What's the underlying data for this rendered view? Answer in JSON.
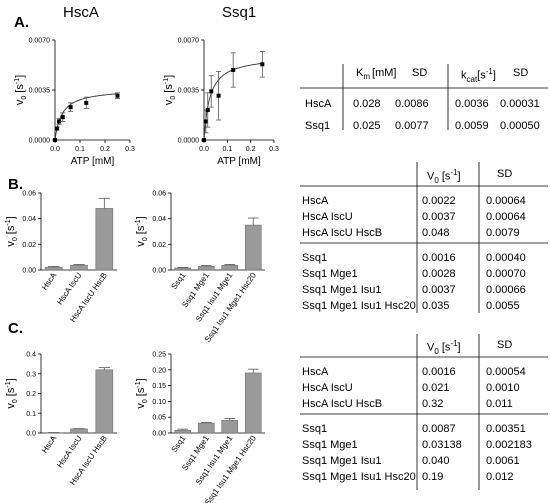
{
  "panels": {
    "A": {
      "label": "A.",
      "hsca_title": "HscA",
      "ssq1_title": "Ssq1",
      "table": {
        "headers": [
          "",
          "K",
          "[mM]",
          "SD",
          "k",
          "[s",
          "-1",
          "]",
          "SD"
        ],
        "km_sub": "m",
        "kcat_sub": "cat",
        "rows": [
          {
            "name": "HscA",
            "km": "0.028",
            "km_sd": "0.0086",
            "kcat": "0.0036",
            "kcat_sd": "0.00031"
          },
          {
            "name": "Ssq1",
            "km": "0.025",
            "km_sd": "0.0077",
            "kcat": "0.0059",
            "kcat_sd": "0.00050"
          }
        ]
      }
    },
    "B": {
      "label": "B.",
      "table": {
        "v0_head": "V",
        "v0_sub": "0",
        "v0_unit": " [s",
        "v0_sup": "-1",
        "v0_close": "]",
        "sd_head": "SD",
        "group1": [
          {
            "name": "HscA",
            "v0": "0.0022",
            "sd": "0.00064"
          },
          {
            "name": "HscA IscU",
            "v0": "0.0037",
            "sd": "0.00064"
          },
          {
            "name": "HscA IscU HscB",
            "v0": "0.048",
            "sd": "0.0079"
          }
        ],
        "group2": [
          {
            "name": "Ssq1",
            "v0": "0.0016",
            "sd": "0.00040"
          },
          {
            "name": "Ssq1 Mge1",
            "v0": "0.0028",
            "sd": "0.00070"
          },
          {
            "name": "Ssq1 Mge1 Isu1",
            "v0": "0.0037",
            "sd": "0.00066"
          },
          {
            "name": "Ssq1 Mge1 Isu1 Hsc20",
            "v0": "0.035",
            "sd": "0.0055"
          }
        ]
      }
    },
    "C": {
      "label": "C.",
      "table": {
        "v0_head": "V",
        "v0_sub": "0",
        "v0_unit": " [s",
        "v0_sup": "-1",
        "v0_close": "]",
        "sd_head": "SD",
        "group1": [
          {
            "name": "HscA",
            "v0": "0.0016",
            "sd": "0.00054"
          },
          {
            "name": "HscA IscU",
            "v0": "0.021",
            "sd": "0.0010"
          },
          {
            "name": "HscA IscU HscB",
            "v0": "0.32",
            "sd": "0.011"
          }
        ],
        "group2": [
          {
            "name": "Ssq1",
            "v0": "0.0087",
            "sd": "0.00351"
          },
          {
            "name": "Ssq1 Mge1",
            "v0": "0.03138",
            "sd": "0.002183"
          },
          {
            "name": "Ssq1 Mge1 Isu1",
            "v0": "0.040",
            "sd": "0.0061"
          },
          {
            "name": "Ssq1 Mge1 Isu1 Hsc20",
            "v0": "0.19",
            "sd": "0.012"
          }
        ]
      }
    }
  },
  "chart_data": [
    {
      "id": "A-HscA",
      "type": "scatter",
      "xlabel": "ATP [mM]",
      "ylabel": "v0 [s-1]",
      "ylabel_main": "v",
      "ylabel_sub": "0",
      "ylabel_unit": " [s",
      "ylabel_sup": "-1",
      "ylabel_close": "]",
      "xlim": [
        0,
        0.3
      ],
      "ylim": [
        0,
        0.007
      ],
      "xticks": [
        "0.0",
        "0.1",
        "0.2",
        "0.3"
      ],
      "yticks": [
        "0.0000",
        "0.0035",
        "0.0070"
      ],
      "points": [
        {
          "x": 0.0,
          "y": 0.0,
          "err": 0.0
        },
        {
          "x": 0.008,
          "y": 0.0008,
          "err": 0.0001
        },
        {
          "x": 0.016,
          "y": 0.0013,
          "err": 0.0002
        },
        {
          "x": 0.031,
          "y": 0.0016,
          "err": 0.0003
        },
        {
          "x": 0.0625,
          "y": 0.0023,
          "err": 0.0003
        },
        {
          "x": 0.125,
          "y": 0.0026,
          "err": 0.0004
        },
        {
          "x": 0.25,
          "y": 0.0031,
          "err": 0.0002
        }
      ],
      "fit": {
        "vmax": 0.0036,
        "km": 0.028
      }
    },
    {
      "id": "A-Ssq1",
      "type": "scatter",
      "xlabel": "ATP [mM]",
      "ylabel": "v0 [s-1]",
      "ylabel_main": "v",
      "ylabel_sub": "0",
      "ylabel_unit": " [s",
      "ylabel_sup": "-1",
      "ylabel_close": "]",
      "xlim": [
        0,
        0.3
      ],
      "ylim": [
        0,
        0.007
      ],
      "xticks": [
        "0.0",
        "0.1",
        "0.2",
        "0.3"
      ],
      "yticks": [
        "0.0000",
        "0.0035",
        "0.0070"
      ],
      "points": [
        {
          "x": 0.0,
          "y": 0.0,
          "err": 0.0
        },
        {
          "x": 0.008,
          "y": 0.0013,
          "err": 0.0008
        },
        {
          "x": 0.016,
          "y": 0.0021,
          "err": 0.0012
        },
        {
          "x": 0.031,
          "y": 0.0034,
          "err": 0.0011
        },
        {
          "x": 0.0625,
          "y": 0.0031,
          "err": 0.0017
        },
        {
          "x": 0.125,
          "y": 0.0049,
          "err": 0.0012
        },
        {
          "x": 0.25,
          "y": 0.0053,
          "err": 0.0009
        }
      ],
      "fit": {
        "vmax": 0.0059,
        "km": 0.025
      }
    },
    {
      "id": "B-HscA",
      "type": "bar",
      "ylabel": "v0 [s-1]",
      "ylabel_main": "v",
      "ylabel_sub": "0",
      "ylabel_unit": " [s",
      "ylabel_sup": "-1",
      "ylabel_close": "]",
      "ylim": [
        0,
        0.06
      ],
      "yticks": [
        "0.00",
        "0.02",
        "0.04",
        "0.06"
      ],
      "categories": [
        "HscA",
        "HscA IscU",
        "HscA IscU HscB"
      ],
      "values": [
        0.0022,
        0.0037,
        0.048
      ],
      "errors": [
        0.00064,
        0.00064,
        0.0079
      ]
    },
    {
      "id": "B-Ssq1",
      "type": "bar",
      "ylabel": "v0 [s-1]",
      "ylabel_main": "v",
      "ylabel_sub": "0",
      "ylabel_unit": " [s",
      "ylabel_sup": "-1",
      "ylabel_close": "]",
      "ylim": [
        0,
        0.06
      ],
      "yticks": [
        "0.00",
        "0.02",
        "0.04",
        "0.06"
      ],
      "categories": [
        "Ssq1",
        "Ssq1 Mge1",
        "Ssq1 Isu1 Mge1",
        "Ssq1 Isu1 Mge1 Hsc20"
      ],
      "values": [
        0.0016,
        0.0028,
        0.0037,
        0.035
      ],
      "errors": [
        0.0004,
        0.0007,
        0.00066,
        0.0055
      ]
    },
    {
      "id": "C-HscA",
      "type": "bar",
      "ylabel": "v0 [s-1]",
      "ylabel_main": "v",
      "ylabel_sub": "0",
      "ylabel_unit": " [s",
      "ylabel_sup": "-1",
      "ylabel_close": "]",
      "ylim": [
        0,
        0.4
      ],
      "yticks": [
        "0.0",
        "0.1",
        "0.2",
        "0.3",
        "0.4"
      ],
      "categories": [
        "HscA",
        "HscA IscU",
        "HscA IscU HscB"
      ],
      "values": [
        0.0016,
        0.021,
        0.32
      ],
      "errors": [
        0.00054,
        0.001,
        0.011
      ]
    },
    {
      "id": "C-Ssq1",
      "type": "bar",
      "ylabel": "v0 [s-1]",
      "ylabel_main": "v",
      "ylabel_sub": "0",
      "ylabel_unit": " [s",
      "ylabel_sup": "-1",
      "ylabel_close": "]",
      "ylim": [
        0,
        0.25
      ],
      "yticks": [
        "0.00",
        "0.05",
        "0.10",
        "0.15",
        "0.20",
        "0.25"
      ],
      "categories": [
        "Ssq1",
        "Ssq1 Mge1",
        "Ssq1 Isu1 Mge1",
        "Ssq1 Isu1 Mge1 Hsc20"
      ],
      "values": [
        0.0087,
        0.03138,
        0.04,
        0.19
      ],
      "errors": [
        0.00351,
        0.002183,
        0.0061,
        0.012
      ]
    }
  ]
}
